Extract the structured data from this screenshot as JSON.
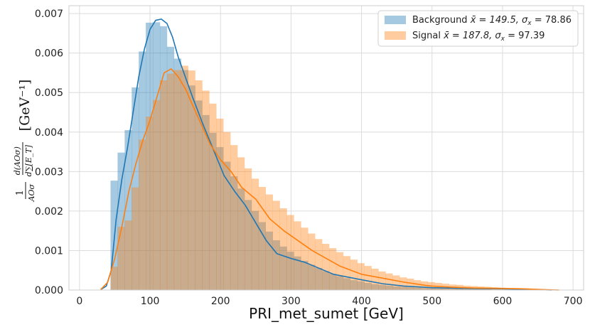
{
  "chart_data": {
    "type": "bar",
    "title": "",
    "xlabel": "PRI_met_sumet [GeV]",
    "ylabel": "(1/AOσ) d(AOσ)/d∑[E_T]  [GeV⁻¹]",
    "xlim": [
      -15,
      715
    ],
    "ylim": [
      0,
      0.0072
    ],
    "xticks": [
      "0",
      "100",
      "200",
      "300",
      "400",
      "500",
      "600",
      "700"
    ],
    "yticks": [
      "0.000",
      "0.001",
      "0.002",
      "0.003",
      "0.004",
      "0.005",
      "0.006",
      "0.007"
    ],
    "grid": true,
    "legend_position": "top-right",
    "bin_edges": [
      44,
      54,
      64,
      74,
      84,
      94,
      104,
      114,
      124,
      134,
      144,
      154,
      164,
      174,
      184,
      194,
      204,
      214,
      224,
      234,
      244,
      254,
      264,
      274,
      284,
      294,
      304,
      314,
      324,
      334,
      344,
      354,
      364,
      374,
      384,
      394,
      404,
      414,
      424,
      434,
      444,
      454,
      464,
      474,
      484,
      494,
      504,
      514,
      524,
      534,
      544,
      554,
      564,
      574,
      584,
      594,
      604,
      614,
      624,
      634,
      644,
      654,
      664
    ],
    "series": [
      {
        "name": "Background x̄ = 149.5, σx = 78.86",
        "label_main": "Background",
        "mean_label": "x̄ = 149.5, σ",
        "sigma_label": " = 78.86",
        "color": "#1f77b4",
        "hist": [
          0.00277,
          0.00348,
          0.00405,
          0.00513,
          0.00604,
          0.00677,
          0.00678,
          0.00668,
          0.00616,
          0.00586,
          0.00557,
          0.00518,
          0.0048,
          0.00443,
          0.00398,
          0.00362,
          0.00325,
          0.00288,
          0.00257,
          0.00228,
          0.002,
          0.00172,
          0.00148,
          0.00126,
          0.0011,
          0.00097,
          0.00085,
          0.00074,
          0.00064,
          0.00056,
          0.00048,
          0.00041,
          0.00035,
          0.0003,
          0.00025,
          0.00022,
          0.00018,
          0.00015,
          0.00013,
          0.00011,
          9e-05,
          8e-05,
          7e-05,
          6e-05,
          5e-05,
          5e-05,
          4e-05,
          4e-05,
          3e-05,
          3e-05,
          2e-05,
          2e-05,
          2e-05,
          2e-05,
          1e-05,
          1e-05,
          1e-05,
          1e-05,
          1e-05,
          1e-05,
          1e-05,
          1e-05
        ],
        "kde_x": [
          30,
          38,
          45,
          52,
          60,
          68,
          76,
          84,
          92,
          100,
          108,
          116,
          124,
          132,
          140,
          150,
          160,
          175,
          190,
          205,
          220,
          235,
          250,
          265,
          280,
          300,
          320,
          340,
          360,
          380,
          400,
          430,
          460,
          500,
          550,
          600,
          650,
          670
        ],
        "kde_y": [
          1e-05,
          0.0001,
          0.0005,
          0.0018,
          0.0028,
          0.0036,
          0.0045,
          0.0054,
          0.0061,
          0.0066,
          0.00683,
          0.00686,
          0.00675,
          0.0064,
          0.0059,
          0.0054,
          0.0049,
          0.0042,
          0.00355,
          0.0029,
          0.0025,
          0.00215,
          0.0017,
          0.00125,
          0.00092,
          0.0008,
          0.0007,
          0.00055,
          0.0004,
          0.00033,
          0.00026,
          0.00016,
          0.0001,
          6e-05,
          4e-05,
          3e-05,
          1e-05,
          0.0
        ]
      },
      {
        "name": "Signal x̄ = 187.8, σx = 97.39",
        "label_main": "Signal",
        "mean_label": "x̄ = 187.8, σ",
        "sigma_label": " = 97.39",
        "color": "#ff7f0e",
        "hist": [
          0.00059,
          0.0016,
          0.00176,
          0.0026,
          0.00381,
          0.00439,
          0.00481,
          0.00531,
          0.00548,
          0.00557,
          0.00568,
          0.00556,
          0.00531,
          0.00505,
          0.00472,
          0.00434,
          0.004,
          0.00367,
          0.00336,
          0.00308,
          0.00282,
          0.00261,
          0.00242,
          0.00226,
          0.00207,
          0.0019,
          0.00174,
          0.00158,
          0.00143,
          0.00129,
          0.00117,
          0.00106,
          0.00096,
          0.00086,
          0.00077,
          0.00068,
          0.00061,
          0.00054,
          0.00047,
          0.00042,
          0.00037,
          0.00032,
          0.00029,
          0.00025,
          0.00022,
          0.0002,
          0.00018,
          0.00016,
          0.00014,
          0.00013,
          0.00011,
          0.0001,
          9e-05,
          8e-05,
          7e-05,
          6e-05,
          5e-05,
          5e-05,
          4e-05,
          3e-05,
          2e-05,
          1e-05
        ],
        "kde_x": [
          30,
          40,
          50,
          60,
          70,
          80,
          90,
          100,
          110,
          120,
          130,
          140,
          150,
          160,
          170,
          185,
          200,
          215,
          230,
          250,
          270,
          290,
          310,
          330,
          350,
          370,
          400,
          430,
          460,
          490,
          500,
          530,
          560,
          600,
          630,
          660,
          680
        ],
        "kde_y": [
          1e-05,
          0.0002,
          0.0008,
          0.0016,
          0.0025,
          0.0032,
          0.0038,
          0.0043,
          0.0049,
          0.0055,
          0.0056,
          0.0054,
          0.0051,
          0.0047,
          0.0043,
          0.0037,
          0.0033,
          0.003,
          0.0026,
          0.0023,
          0.0018,
          0.0015,
          0.00125,
          0.001,
          0.0008,
          0.0006,
          0.0004,
          0.0003,
          0.0002,
          0.00012,
          0.0001,
          7e-05,
          5e-05,
          4e-05,
          3e-05,
          1e-05,
          0.0
        ]
      }
    ]
  }
}
